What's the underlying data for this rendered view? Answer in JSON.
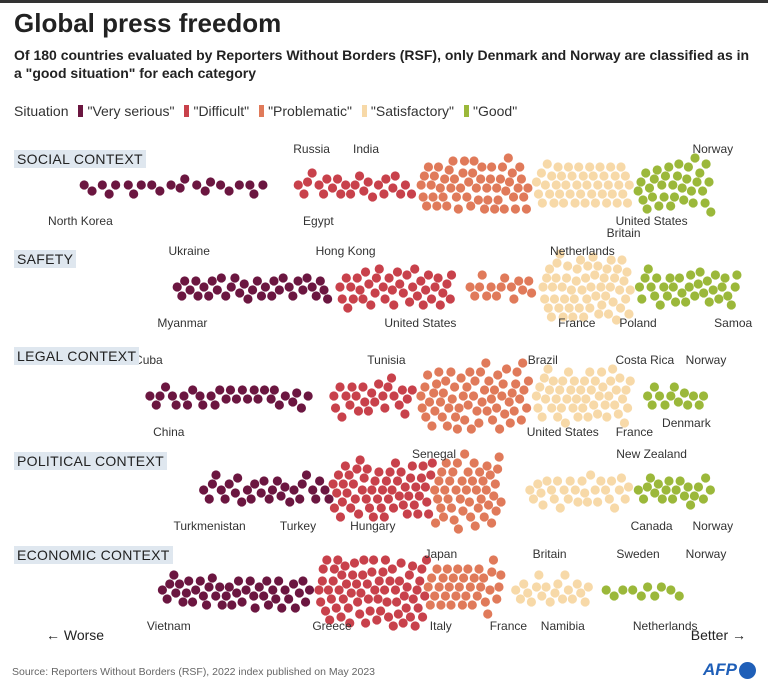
{
  "title": "Global press freedom",
  "subtitle": "Of 180 countries evaluated by Reporters Without Borders (RSF), only Denmark and Norway are classified as in a \"good situation\" for each category",
  "legend": {
    "label": "Situation",
    "items": [
      {
        "label": "\"Very serious\"",
        "color": "#6b1640"
      },
      {
        "label": "\"Difficult\"",
        "color": "#c8414b"
      },
      {
        "label": "\"Problematic\"",
        "color": "#e07a5a"
      },
      {
        "label": "\"Satisfactory\"",
        "color": "#f7d9a8"
      },
      {
        "label": "\"Good\"",
        "color": "#9bb83a"
      }
    ]
  },
  "axis": {
    "worse": "Worse",
    "better": "Better"
  },
  "source": "Source: Reporters Without Borders (RSF), 2022 index published on May 2023",
  "logo": "AFP",
  "chart_data": {
    "type": "beeswarm",
    "rows": [
      {
        "title": "SOCIAL CONTEXT",
        "groups": [
          [
            22,
            3,
            31
          ],
          [
            25,
            35,
            52
          ],
          [
            55,
            53,
            69
          ],
          [
            45,
            70,
            84
          ],
          [
            33,
            85,
            96
          ]
        ],
        "labels": [
          [
            "North Korea",
            3,
            "below"
          ],
          [
            "Russia",
            37,
            "above"
          ],
          [
            "Egypt",
            38,
            "below"
          ],
          [
            "India",
            45,
            "above"
          ],
          [
            "United States",
            87,
            "below"
          ],
          [
            "Norway",
            96,
            "above"
          ]
        ]
      },
      {
        "title": "SAFETY",
        "groups": [
          [
            35,
            17,
            40
          ],
          [
            40,
            41,
            58
          ],
          [
            15,
            60,
            70
          ],
          [
            57,
            71,
            84
          ],
          [
            33,
            85,
            100
          ]
        ],
        "labels": [
          [
            "Ukraine",
            19,
            "above"
          ],
          [
            "Myanmar",
            18,
            "below"
          ],
          [
            "Hong Kong",
            42,
            "above"
          ],
          [
            "United States",
            53,
            "below"
          ],
          [
            "Netherlands",
            78,
            "above"
          ],
          [
            "Britain",
            82,
            "above"
          ],
          [
            "France",
            76,
            "below"
          ],
          [
            "Poland",
            85,
            "below"
          ],
          [
            "Samoa",
            99,
            "below"
          ]
        ]
      },
      {
        "title": "LEGAL CONTEXT",
        "groups": [
          [
            30,
            13,
            37
          ],
          [
            25,
            40,
            52
          ],
          [
            62,
            53,
            69
          ],
          [
            50,
            70,
            84
          ],
          [
            13,
            86,
            95
          ]
        ],
        "labels": [
          [
            "Cuba",
            13,
            "above"
          ],
          [
            "China",
            16,
            "below"
          ],
          [
            "Tunisia",
            48,
            "above"
          ],
          [
            "Brazil",
            71,
            "above"
          ],
          [
            "United States",
            76,
            "below"
          ],
          [
            "France",
            83,
            "below"
          ],
          [
            "Costa Rica",
            86,
            "above"
          ],
          [
            "Denmark",
            88,
            "below"
          ],
          [
            "Norway",
            95,
            "above"
          ]
        ]
      },
      {
        "title": "POLITICAL CONTEXT",
        "groups": [
          [
            30,
            21,
            40
          ],
          [
            55,
            40,
            55
          ],
          [
            45,
            55,
            65
          ],
          [
            30,
            69,
            84
          ],
          [
            20,
            85,
            96
          ]
        ],
        "labels": [
          [
            "Turkmenistan",
            22,
            "below"
          ],
          [
            "Turkey",
            35,
            "below"
          ],
          [
            "Hungary",
            46,
            "below"
          ],
          [
            "Senegal",
            55,
            "above"
          ],
          [
            "New Zealand",
            87,
            "above"
          ],
          [
            "Canada",
            87,
            "below"
          ],
          [
            "Norway",
            96,
            "below"
          ]
        ]
      },
      {
        "title": "ECONOMIC CONTEXT",
        "groups": [
          [
            45,
            15,
            37
          ],
          [
            70,
            38,
            54
          ],
          [
            35,
            54,
            65
          ],
          [
            20,
            67,
            78
          ],
          [
            10,
            80,
            92
          ]
        ],
        "labels": [
          [
            "Vietnam",
            16,
            "below"
          ],
          [
            "Greece",
            40,
            "below"
          ],
          [
            "Japan",
            56,
            "above"
          ],
          [
            "Italy",
            56,
            "below"
          ],
          [
            "Britain",
            72,
            "above"
          ],
          [
            "France",
            68,
            "below"
          ],
          [
            "Namibia",
            71,
            "below"
          ],
          [
            "Sweden",
            85,
            "above"
          ],
          [
            "Netherlands",
            89,
            "below"
          ],
          [
            "Norway",
            95,
            "above"
          ]
        ]
      }
    ]
  }
}
